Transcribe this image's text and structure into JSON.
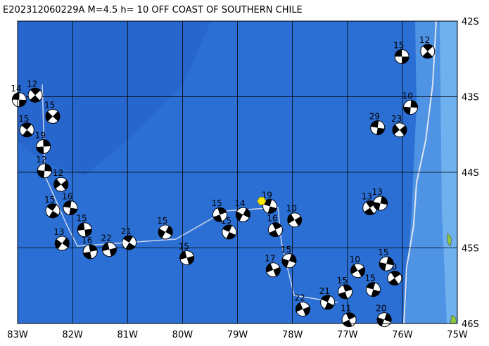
{
  "map": {
    "title": "E202312060229A M=4.5 h= 10 OFF COAST OF SOUTHERN CHILE",
    "lon_range": [
      -83,
      -75
    ],
    "lat_range": [
      -42,
      -46
    ],
    "lon_ticks": [
      {
        "value": -83,
        "label": "83W"
      },
      {
        "value": -82,
        "label": "82W"
      },
      {
        "value": -81,
        "label": "81W"
      },
      {
        "value": -80,
        "label": "80W"
      },
      {
        "value": -79,
        "label": "79W"
      },
      {
        "value": -78,
        "label": "78W"
      },
      {
        "value": -77,
        "label": "77W"
      },
      {
        "value": -76,
        "label": "76W"
      },
      {
        "value": -75,
        "label": "75W"
      }
    ],
    "lat_ticks": [
      {
        "value": -42,
        "label": "42S"
      },
      {
        "value": -43,
        "label": "43S"
      },
      {
        "value": -44,
        "label": "44S"
      },
      {
        "value": -45,
        "label": "45S"
      },
      {
        "value": -46,
        "label": "46S"
      }
    ],
    "epicenter": {
      "lon": -78.56,
      "lat": -44.38
    },
    "events": [
      {
        "lon": -76.01,
        "lat": -42.47,
        "depth": 15
      },
      {
        "lon": -75.54,
        "lat": -42.4,
        "depth": 12
      },
      {
        "lon": -75.85,
        "lat": -43.14,
        "depth": 10
      },
      {
        "lon": -76.05,
        "lat": -43.44,
        "depth": 23
      },
      {
        "lon": -76.45,
        "lat": -43.41,
        "depth": 29
      },
      {
        "lon": -76.59,
        "lat": -44.47,
        "depth": 13
      },
      {
        "lon": -76.4,
        "lat": -44.41,
        "depth": 13
      },
      {
        "lon": -77.96,
        "lat": -44.63,
        "depth": 10
      },
      {
        "lon": -78.41,
        "lat": -44.45,
        "depth": 19
      },
      {
        "lon": -78.31,
        "lat": -44.76,
        "depth": 16
      },
      {
        "lon": -78.06,
        "lat": -45.17,
        "depth": 15
      },
      {
        "lon": -78.35,
        "lat": -45.29,
        "depth": 17
      },
      {
        "lon": -79.15,
        "lat": -44.79,
        "depth": 15
      },
      {
        "lon": -79.32,
        "lat": -44.56,
        "depth": 15
      },
      {
        "lon": -78.9,
        "lat": -44.56,
        "depth": 14
      },
      {
        "lon": -79.92,
        "lat": -45.13,
        "depth": 15
      },
      {
        "lon": -80.97,
        "lat": -44.93,
        "depth": 21
      },
      {
        "lon": -81.68,
        "lat": -45.05,
        "depth": 16
      },
      {
        "lon": -82.19,
        "lat": -44.94,
        "depth": 13
      },
      {
        "lon": -81.78,
        "lat": -44.76,
        "depth": 15
      },
      {
        "lon": -82.83,
        "lat": -43.44,
        "depth": 15
      },
      {
        "lon": -82.53,
        "lat": -43.66,
        "depth": 19
      },
      {
        "lon": -82.36,
        "lat": -43.26,
        "depth": 15
      },
      {
        "lon": -82.97,
        "lat": -43.04,
        "depth": 14
      },
      {
        "lon": -82.68,
        "lat": -42.98,
        "depth": 12
      },
      {
        "lon": -82.51,
        "lat": -43.98,
        "depth": 12
      },
      {
        "lon": -82.21,
        "lat": -44.16,
        "depth": 12
      },
      {
        "lon": -82.04,
        "lat": -44.47,
        "depth": 16
      },
      {
        "lon": -76.14,
        "lat": -45.4,
        "depth": 10
      },
      {
        "lon": -76.29,
        "lat": -45.21,
        "depth": 15
      },
      {
        "lon": -76.81,
        "lat": -45.3,
        "depth": 10
      },
      {
        "lon": -76.53,
        "lat": -45.55,
        "depth": 15
      },
      {
        "lon": -76.97,
        "lat": -45.95,
        "depth": 11
      },
      {
        "lon": -76.33,
        "lat": -45.95,
        "depth": 20
      },
      {
        "lon": -77.81,
        "lat": -45.81,
        "depth": 22
      },
      {
        "lon": -77.36,
        "lat": -45.72,
        "depth": 21
      },
      {
        "lon": -77.04,
        "lat": -45.58,
        "depth": 15
      },
      {
        "lon": -80.31,
        "lat": -44.79,
        "depth": 15
      },
      {
        "lon": -81.33,
        "lat": -45.02,
        "depth": 22
      },
      {
        "lon": -82.36,
        "lat": -44.51,
        "depth": 15
      }
    ]
  }
}
